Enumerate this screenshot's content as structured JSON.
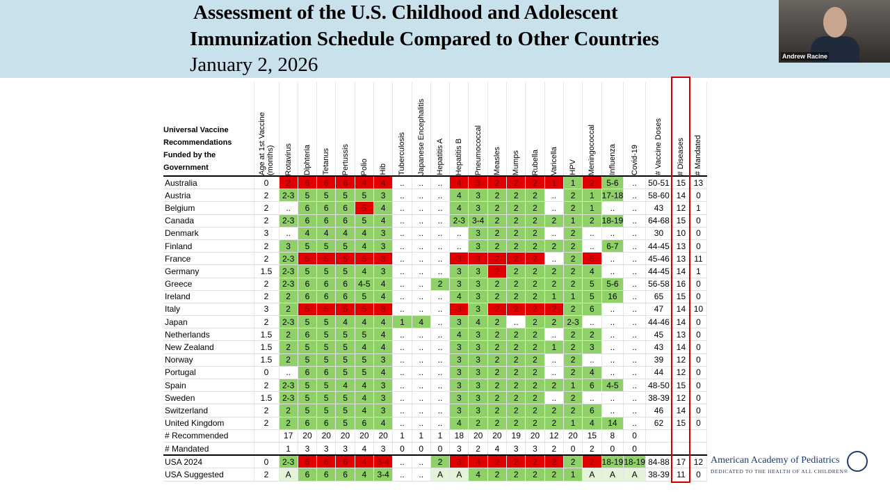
{
  "header": {
    "title_line1": "Assessment of the U.S. Childhood and Adolescent",
    "title_line2": "Immunization Schedule Compared to Other Countries",
    "date": "January 2, 2026"
  },
  "video": {
    "name": "Andrew Racine"
  },
  "table": {
    "corner": "Universal Vaccine Recommendations Funded by the Government",
    "columns": [
      "Age at 1st Vaccine (months)",
      "Rotavirus",
      "Diphteria",
      "Tetanus",
      "Pertussis",
      "Polio",
      "Hib",
      "Tuberculosis",
      "Japanese Encephalitis",
      "Hepatitis A",
      "Hepatitis B",
      "Pneumococcal",
      "Measles",
      "Mumps",
      "Rubella",
      "Varicella",
      "HPV",
      "Meningococcal",
      "Influenza",
      "Covid-19",
      "# Vaccine Doses",
      "# Diseases",
      "# Mandated"
    ],
    "rows": [
      {
        "country": "Australia",
        "values": [
          "0",
          "2",
          "6",
          "6",
          "6",
          "4",
          "4",
          "..",
          "..",
          "..",
          "4",
          "3",
          "2",
          "2",
          "2",
          "1",
          "1",
          "2",
          "5-6",
          "..",
          "50-51",
          "15",
          "13"
        ],
        "red": [
          1,
          2,
          3,
          4,
          5,
          6,
          10,
          11,
          12,
          13,
          14,
          15,
          17
        ]
      },
      {
        "country": "Austria",
        "values": [
          "2",
          "2-3",
          "5",
          "5",
          "5",
          "5",
          "3",
          "..",
          "..",
          "..",
          "4",
          "3",
          "2",
          "2",
          "2",
          "..",
          "2",
          "1",
          "17-18",
          "..",
          "58-60",
          "14",
          "0"
        ],
        "red": []
      },
      {
        "country": "Belgium",
        "values": [
          "2",
          "..",
          "6",
          "6",
          "6",
          "5",
          "4",
          "..",
          "..",
          "..",
          "4",
          "3",
          "2",
          "2",
          "2",
          "..",
          "2",
          "1",
          "..",
          "..",
          "43",
          "12",
          "1"
        ],
        "red": [
          5
        ]
      },
      {
        "country": "Canada",
        "values": [
          "2",
          "2-3",
          "6",
          "6",
          "6",
          "5",
          "4",
          "..",
          "..",
          "..",
          "2-3",
          "3-4",
          "2",
          "2",
          "2",
          "2",
          "1",
          "2",
          "18-19",
          "..",
          "64-68",
          "15",
          "0"
        ],
        "red": []
      },
      {
        "country": "Denmark",
        "values": [
          "3",
          "..",
          "4",
          "4",
          "4",
          "4",
          "3",
          "..",
          "..",
          "..",
          "..",
          "3",
          "2",
          "2",
          "2",
          "..",
          "2",
          "..",
          "..",
          "..",
          "30",
          "10",
          "0"
        ],
        "red": []
      },
      {
        "country": "Finland",
        "values": [
          "2",
          "3",
          "5",
          "5",
          "5",
          "4",
          "3",
          "..",
          "..",
          "..",
          "..",
          "3",
          "2",
          "2",
          "2",
          "2",
          "2",
          "..",
          "6-7",
          "..",
          "44-45",
          "13",
          "0"
        ],
        "red": []
      },
      {
        "country": "France",
        "values": [
          "2",
          "2-3",
          "5",
          "5",
          "5",
          "5",
          "3",
          "..",
          "..",
          "..",
          "3",
          "3",
          "2",
          "2",
          "2",
          "..",
          "2",
          "6",
          "..",
          "..",
          "45-46",
          "13",
          "11"
        ],
        "red": [
          2,
          3,
          4,
          5,
          6,
          10,
          11,
          12,
          13,
          14,
          17
        ]
      },
      {
        "country": "Germany",
        "values": [
          "1.5",
          "2-3",
          "5",
          "5",
          "5",
          "4",
          "3",
          "..",
          "..",
          "..",
          "3",
          "3",
          "2",
          "2",
          "2",
          "2",
          "2",
          "4",
          "..",
          "..",
          "44-45",
          "14",
          "1"
        ],
        "red": [
          12
        ]
      },
      {
        "country": "Greece",
        "values": [
          "2",
          "2-3",
          "6",
          "6",
          "6",
          "4-5",
          "4",
          "..",
          "..",
          "2",
          "3",
          "3",
          "2",
          "2",
          "2",
          "2",
          "2",
          "5",
          "5-6",
          "..",
          "56-58",
          "16",
          "0"
        ],
        "red": []
      },
      {
        "country": "Ireland",
        "values": [
          "2",
          "2",
          "6",
          "6",
          "6",
          "5",
          "4",
          "..",
          "..",
          "..",
          "4",
          "3",
          "2",
          "2",
          "2",
          "1",
          "1",
          "5",
          "16",
          "..",
          "65",
          "15",
          "0"
        ],
        "red": []
      },
      {
        "country": "Italy",
        "values": [
          "3",
          "2",
          "5",
          "5",
          "5",
          "5",
          "3",
          "..",
          "..",
          "..",
          "3",
          "3",
          "2",
          "2",
          "2",
          "2",
          "2",
          "6",
          "..",
          "..",
          "47",
          "14",
          "10"
        ],
        "red": [
          2,
          3,
          4,
          5,
          6,
          10,
          12,
          13,
          14,
          15
        ]
      },
      {
        "country": "Japan",
        "values": [
          "2",
          "2-3",
          "5",
          "5",
          "4",
          "4",
          "4",
          "1",
          "4",
          "..",
          "3",
          "4",
          "2",
          "..",
          "2",
          "2",
          "2-3",
          "..",
          "..",
          "..",
          "44-46",
          "14",
          "0"
        ],
        "red": []
      },
      {
        "country": "Netherlands",
        "values": [
          "1.5",
          "2",
          "6",
          "5",
          "5",
          "5",
          "4",
          "..",
          "..",
          "..",
          "4",
          "3",
          "2",
          "2",
          "2",
          "..",
          "2",
          "2",
          "..",
          "..",
          "45",
          "13",
          "0"
        ],
        "red": []
      },
      {
        "country": "New Zealand",
        "values": [
          "1.5",
          "2",
          "5",
          "5",
          "5",
          "4",
          "4",
          "..",
          "..",
          "..",
          "3",
          "3",
          "2",
          "2",
          "2",
          "1",
          "2",
          "3",
          "..",
          "..",
          "43",
          "14",
          "0"
        ],
        "red": []
      },
      {
        "country": "Norway",
        "values": [
          "1.5",
          "2",
          "5",
          "5",
          "5",
          "5",
          "3",
          "..",
          "..",
          "..",
          "3",
          "3",
          "2",
          "2",
          "2",
          "..",
          "2",
          "..",
          "..",
          "..",
          "39",
          "12",
          "0"
        ],
        "red": []
      },
      {
        "country": "Portugal",
        "values": [
          "0",
          "..",
          "6",
          "6",
          "5",
          "5",
          "4",
          "..",
          "..",
          "..",
          "3",
          "3",
          "2",
          "2",
          "2",
          "..",
          "2",
          "4",
          "..",
          "..",
          "44",
          "12",
          "0"
        ],
        "red": []
      },
      {
        "country": "Spain",
        "values": [
          "2",
          "2-3",
          "5",
          "5",
          "4",
          "4",
          "3",
          "..",
          "..",
          "..",
          "3",
          "3",
          "2",
          "2",
          "2",
          "2",
          "1",
          "6",
          "4-5",
          "..",
          "48-50",
          "15",
          "0"
        ],
        "red": []
      },
      {
        "country": "Sweden",
        "values": [
          "1.5",
          "2-3",
          "5",
          "5",
          "5",
          "4",
          "3",
          "..",
          "..",
          "..",
          "3",
          "3",
          "2",
          "2",
          "2",
          "..",
          "2",
          "..",
          "..",
          "..",
          "38-39",
          "12",
          "0"
        ],
        "red": []
      },
      {
        "country": "Switzerland",
        "values": [
          "2",
          "2",
          "5",
          "5",
          "5",
          "4",
          "3",
          "..",
          "..",
          "..",
          "3",
          "3",
          "2",
          "2",
          "2",
          "2",
          "2",
          "6",
          "..",
          "..",
          "46",
          "14",
          "0"
        ],
        "red": []
      },
      {
        "country": "United Kingdom",
        "values": [
          "2",
          "2",
          "6",
          "6",
          "5",
          "6",
          "4",
          "..",
          "..",
          "..",
          "4",
          "2",
          "2",
          "2",
          "2",
          "2",
          "1",
          "4",
          "14",
          "..",
          "62",
          "15",
          "0"
        ],
        "red": []
      }
    ],
    "summary": [
      {
        "label": "# Recommended",
        "values": [
          "17",
          "20",
          "20",
          "20",
          "20",
          "20",
          "1",
          "1",
          "1",
          "18",
          "20",
          "20",
          "19",
          "20",
          "12",
          "20",
          "15",
          "8",
          "0"
        ]
      },
      {
        "label": "# Mandated",
        "values": [
          "1",
          "3",
          "3",
          "3",
          "4",
          "3",
          "0",
          "0",
          "0",
          "3",
          "2",
          "4",
          "3",
          "3",
          "2",
          "0",
          "2",
          "0",
          "0"
        ]
      }
    ],
    "usa": [
      {
        "country": "USA 2024",
        "values": [
          "0",
          "2-3",
          "6",
          "6",
          "6",
          "4",
          "3-4",
          "..",
          "..",
          "2",
          "3",
          "4",
          "2",
          "2",
          "2",
          "2",
          "2",
          "2",
          "18-19",
          "18-19",
          "84-88",
          "17",
          "12"
        ],
        "red": [
          2,
          3,
          4,
          5,
          6,
          10,
          11,
          12,
          13,
          14,
          15,
          17
        ]
      },
      {
        "country": "USA Suggested",
        "values": [
          "2",
          "A",
          "6",
          "6",
          "6",
          "4",
          "3-4",
          "..",
          "..",
          "A",
          "A",
          "4",
          "2",
          "2",
          "2",
          "2",
          "1",
          "A",
          "A",
          "A",
          "38-39",
          "11",
          "0"
        ],
        "red": []
      }
    ]
  },
  "footer": {
    "org": "American Academy of Pediatrics",
    "tagline": "DEDICATED TO THE HEALTH OF ALL CHILDREN®"
  }
}
